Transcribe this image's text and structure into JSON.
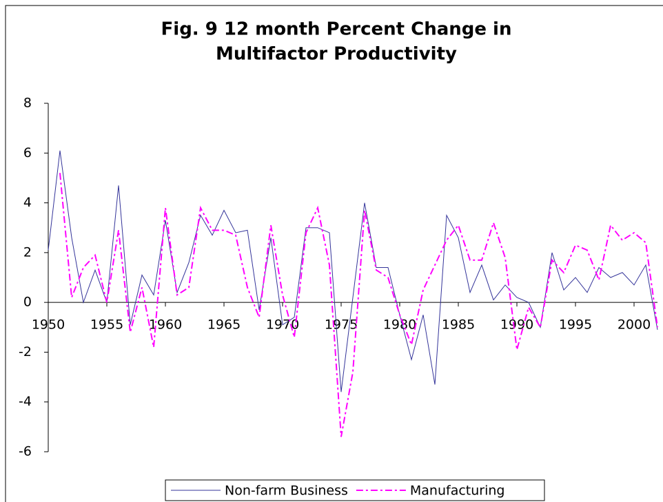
{
  "chart_data": {
    "type": "line",
    "title": [
      "Fig. 9   12 month Percent Change in",
      "Multifactor Productivity"
    ],
    "x": [
      1950,
      1951,
      1952,
      1953,
      1954,
      1955,
      1956,
      1957,
      1958,
      1959,
      1960,
      1961,
      1962,
      1963,
      1964,
      1965,
      1966,
      1967,
      1968,
      1969,
      1970,
      1971,
      1972,
      1973,
      1974,
      1975,
      1976,
      1977,
      1978,
      1979,
      1980,
      1981,
      1982,
      1983,
      1984,
      1985,
      1986,
      1987,
      1988,
      1989,
      1990,
      1991,
      1992,
      1993,
      1994,
      1995,
      1996,
      1997,
      1998,
      1999,
      2000,
      2001,
      2002
    ],
    "series": [
      {
        "name": "Non-farm Business",
        "color": "#333399",
        "dash": "solid",
        "values": [
          2.1,
          6.1,
          2.6,
          0,
          1.3,
          0,
          4.7,
          -0.9,
          1.1,
          0.3,
          3.3,
          0.4,
          1.6,
          3.5,
          2.7,
          3.7,
          2.8,
          2.9,
          -0.3,
          2.6,
          -0.9,
          -0.6,
          3.0,
          3.0,
          2.8,
          -3.6,
          0.2,
          4.0,
          1.4,
          1.4,
          -0.5,
          -2.3,
          -0.5,
          -3.3,
          3.5,
          2.6,
          0.4,
          1.5,
          0.1,
          0.7,
          0.2,
          0,
          -1.0,
          2.0,
          0.5,
          1.0,
          0.4,
          1.4,
          1.0,
          1.2,
          0.7,
          1.5,
          -1.1
        ]
      },
      {
        "name": "Manufacturing",
        "color": "#ff00ff",
        "dash": "dash-dot",
        "values": [
          null,
          5.2,
          0.2,
          1.4,
          1.9,
          0,
          2.9,
          -1.2,
          0.6,
          -1.8,
          3.8,
          0.3,
          0.6,
          3.8,
          2.9,
          2.9,
          2.7,
          0.6,
          -0.6,
          3.1,
          0.3,
          -1.4,
          2.8,
          3.8,
          1.5,
          -5.4,
          -2.8,
          3.7,
          1.3,
          1.0,
          -0.5,
          -1.7,
          0.5,
          1.5,
          2.5,
          3.1,
          1.7,
          1.7,
          3.2,
          1.8,
          -1.9,
          -0.2,
          -1.0,
          1.7,
          1.2,
          2.3,
          2.1,
          0.9,
          3.1,
          2.5,
          2.8,
          2.4,
          -1.0
        ]
      }
    ],
    "xlim": [
      1950,
      2002
    ],
    "xticks": [
      1950,
      1955,
      1960,
      1965,
      1970,
      1975,
      1980,
      1985,
      1990,
      1995,
      2000
    ],
    "ylim": [
      -6,
      8
    ],
    "yticks": [
      -6,
      -4,
      -2,
      0,
      2,
      4,
      6,
      8
    ],
    "legend": "bottom"
  }
}
